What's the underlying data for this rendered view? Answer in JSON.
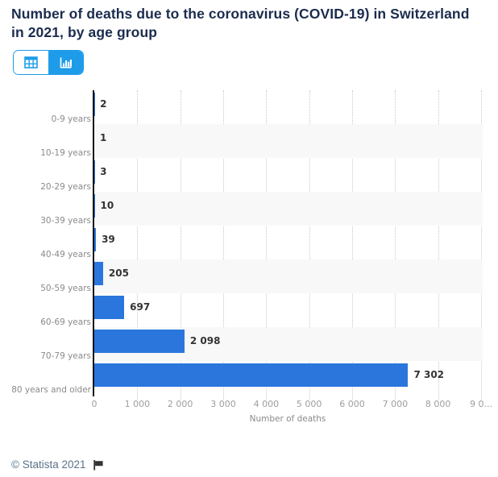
{
  "title": "Number of deaths due to the coronavirus (COVID-19) in Switzerland in 2021, by age group",
  "view_toggle": {
    "active_view": "chart",
    "table_button_icon": "table-grid-icon",
    "chart_button_icon": "bar-chart-icon"
  },
  "chart_data": {
    "type": "bar",
    "orientation": "horizontal",
    "categories": [
      "0-9 years",
      "10-19 years",
      "20-29 years",
      "30-39 years",
      "40-49 years",
      "50-59 years",
      "60-69 years",
      "70-79 years",
      "80 years and older"
    ],
    "values": [
      2,
      1,
      3,
      10,
      39,
      205,
      697,
      2098,
      7302
    ],
    "value_labels": [
      "2",
      "1",
      "3",
      "10",
      "39",
      "205",
      "697",
      "2 098",
      "7 302"
    ],
    "xlabel": "Number of deaths",
    "ylabel": "",
    "xlim": [
      0,
      9000
    ],
    "x_tick_values": [
      0,
      1000,
      2000,
      3000,
      4000,
      5000,
      6000,
      7000,
      8000,
      9000
    ],
    "x_tick_labels": [
      "0",
      "1 000",
      "2 000",
      "3 000",
      "4 000",
      "5 000",
      "6 000",
      "7 000",
      "8 000",
      "9 0..."
    ],
    "grid": "vertical-dotted",
    "legend": "none",
    "colors": {
      "bar": "#2a76dd",
      "alt_band": "#f8f8f8",
      "axis_line": "#111111",
      "gridline": "#c9c9c9",
      "toggle_accent": "#1e9ce9"
    }
  },
  "footer": {
    "copyright": "© Statista 2021",
    "flag_icon": "flag-icon"
  }
}
